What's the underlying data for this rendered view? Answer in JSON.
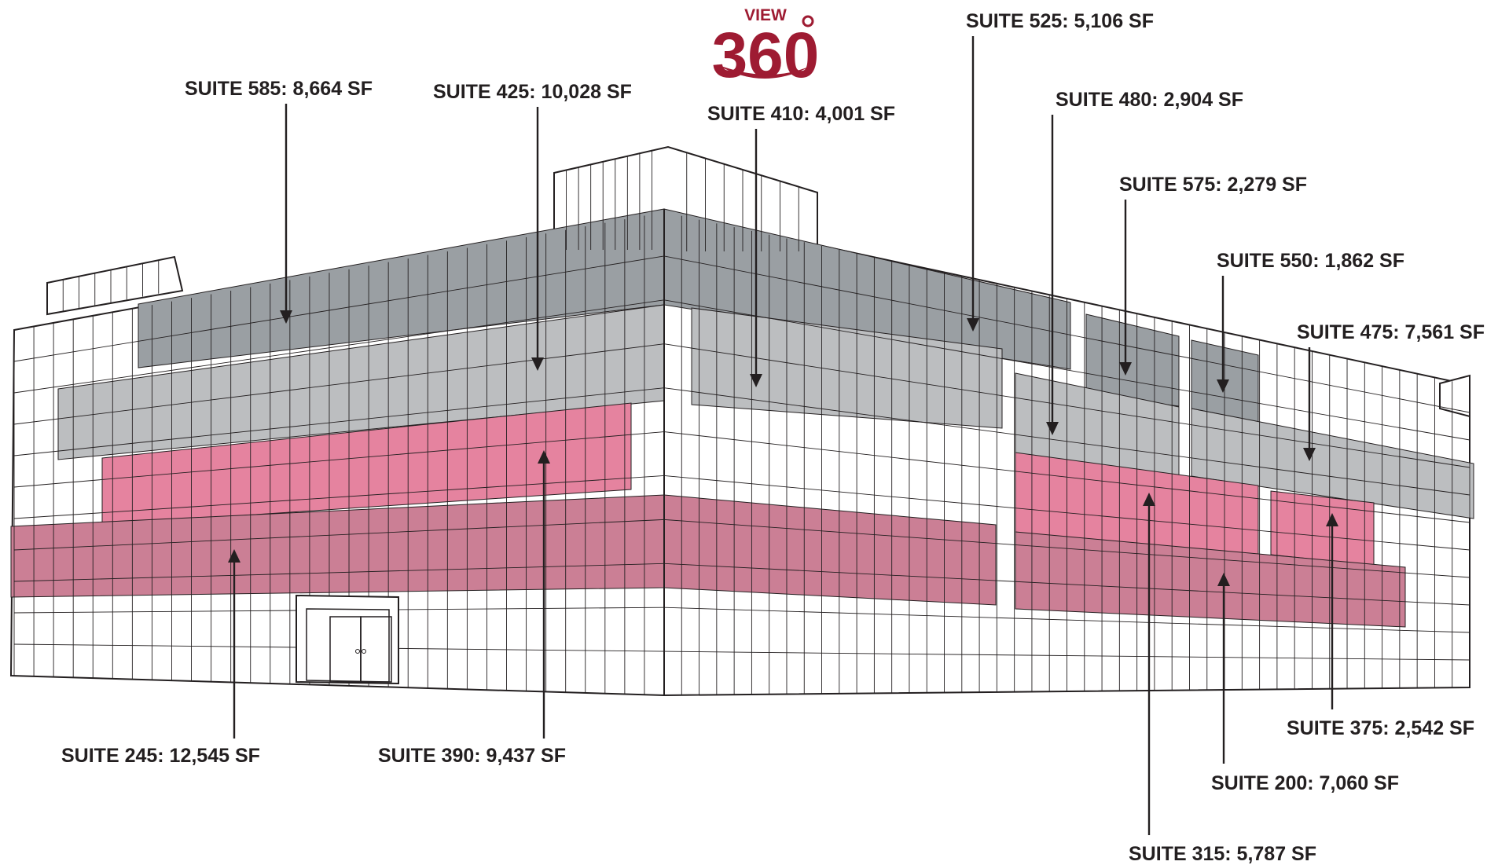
{
  "badge": {
    "small": "VIEW",
    "big": "360",
    "color": "#9e1b32",
    "interactable": true
  },
  "colors": {
    "dark_gray": "#9a9fa3",
    "light_gray": "#bcbec0",
    "pink": "#e5839f",
    "mauve": "#cb7f95",
    "outline": "#231f20",
    "white": "#ffffff"
  },
  "suites": [
    {
      "id": "585",
      "label": "SUITE 585: 8,664 SF",
      "color": "dark_gray"
    },
    {
      "id": "425",
      "label": "SUITE 425: 10,028 SF",
      "color": "light_gray"
    },
    {
      "id": "410",
      "label": "SUITE 410: 4,001 SF",
      "color": "light_gray"
    },
    {
      "id": "525",
      "label": "SUITE 525: 5,106 SF",
      "color": "dark_gray"
    },
    {
      "id": "480",
      "label": "SUITE 480: 2,904 SF",
      "color": "light_gray"
    },
    {
      "id": "575",
      "label": "SUITE 575: 2,279 SF",
      "color": "dark_gray"
    },
    {
      "id": "550",
      "label": "SUITE 550: 1,862 SF",
      "color": "dark_gray"
    },
    {
      "id": "475",
      "label": "SUITE 475: 7,561 SF",
      "color": "light_gray"
    },
    {
      "id": "245",
      "label": "SUITE 245: 12,545 SF",
      "color": "mauve"
    },
    {
      "id": "390",
      "label": "SUITE 390: 9,437 SF",
      "color": "pink"
    },
    {
      "id": "375",
      "label": "SUITE 375: 2,542 SF",
      "color": "pink"
    },
    {
      "id": "200",
      "label": "SUITE 200: 7,060 SF",
      "color": "mauve"
    },
    {
      "id": "315",
      "label": "SUITE 315: 5,787 SF",
      "color": "pink"
    }
  ]
}
